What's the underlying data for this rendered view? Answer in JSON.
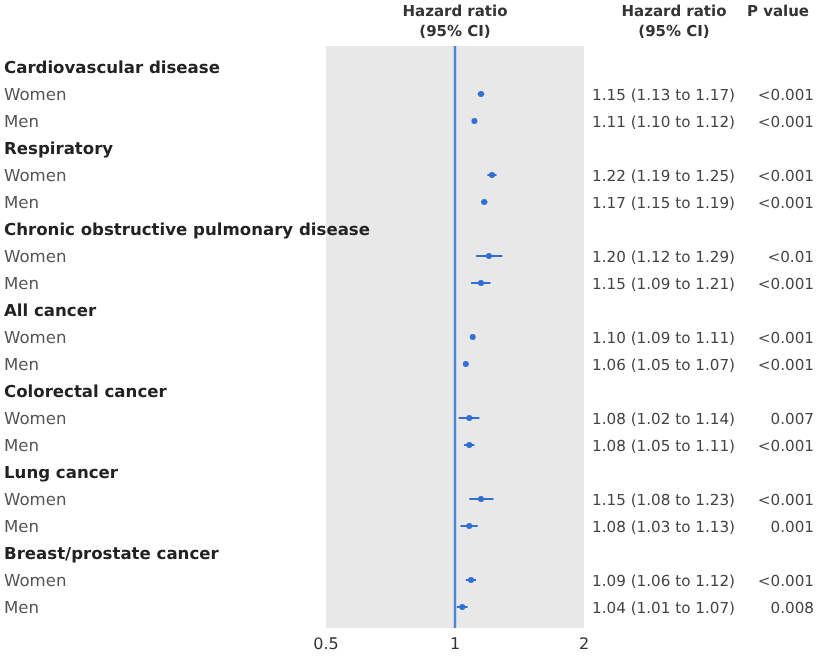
{
  "chart_data": {
    "type": "scatter",
    "orientation": "horizontal",
    "xlabel": "Hazard ratio\n(95% CI)",
    "categories": [
      "Cardiovascular disease",
      "Women",
      "Men",
      "Respiratory",
      "Women",
      "Men",
      "Chronic obstructive pulmonary disease",
      "Women",
      "Men",
      "All cancer",
      "Women",
      "Men",
      "Colorectal cancer",
      "Women",
      "Men",
      "Lung cancer",
      "Women",
      "Men",
      "Breast/prostate cancer",
      "Women",
      "Men"
    ],
    "values": [
      null,
      1.15,
      1.11,
      null,
      1.22,
      1.17,
      null,
      1.2,
      1.15,
      null,
      1.1,
      1.06,
      null,
      1.08,
      1.08,
      null,
      1.15,
      1.08,
      null,
      1.09,
      1.04
    ],
    "errors": [
      null,
      [
        1.13,
        1.17
      ],
      [
        1.1,
        1.12
      ],
      null,
      [
        1.19,
        1.25
      ],
      [
        1.15,
        1.19
      ],
      null,
      [
        1.12,
        1.29
      ],
      [
        1.09,
        1.21
      ],
      null,
      [
        1.09,
        1.11
      ],
      [
        1.05,
        1.07
      ],
      null,
      [
        1.02,
        1.14
      ],
      [
        1.05,
        1.11
      ],
      null,
      [
        1.08,
        1.23
      ],
      [
        1.03,
        1.13
      ],
      null,
      [
        1.06,
        1.12
      ],
      [
        1.01,
        1.07
      ]
    ],
    "value_labels": [
      null,
      "1.15 (1.13 to 1.17)",
      "1.11 (1.10 to 1.12)",
      null,
      "1.22 (1.19 to 1.25)",
      "1.17 (1.15 to 1.19)",
      null,
      "1.20 (1.12 to 1.29)",
      "1.15 (1.09 to 1.21)",
      null,
      "1.10 (1.09 to 1.11)",
      "1.06 (1.05 to 1.07)",
      null,
      "1.08 (1.02 to 1.14)",
      "1.08 (1.05 to 1.11)",
      null,
      "1.15 (1.08 to 1.23)",
      "1.08 (1.03 to 1.13)",
      null,
      "1.09 (1.06 to 1.12)",
      "1.04 (1.01 to 1.07)"
    ],
    "annotations": [
      "Hazard ratio\n(95% CI)",
      "P value",
      "<0.001",
      "<0.001",
      "<0.001",
      "<0.001",
      "<0.01",
      "<0.001",
      "<0.001",
      "<0.001",
      "0.007",
      "<0.001",
      "<0.001",
      "0.001",
      "<0.001",
      "0.008"
    ],
    "color": "#2f6fd6",
    "marker": "circle",
    "log": "x",
    "xlim": [
      0.5,
      2
    ],
    "xticks": [
      0.5,
      1,
      2
    ],
    "ref_lines": [
      {
        "axis": "x",
        "value": 1,
        "color": "#4a86d8"
      }
    ],
    "grid": false
  }
}
